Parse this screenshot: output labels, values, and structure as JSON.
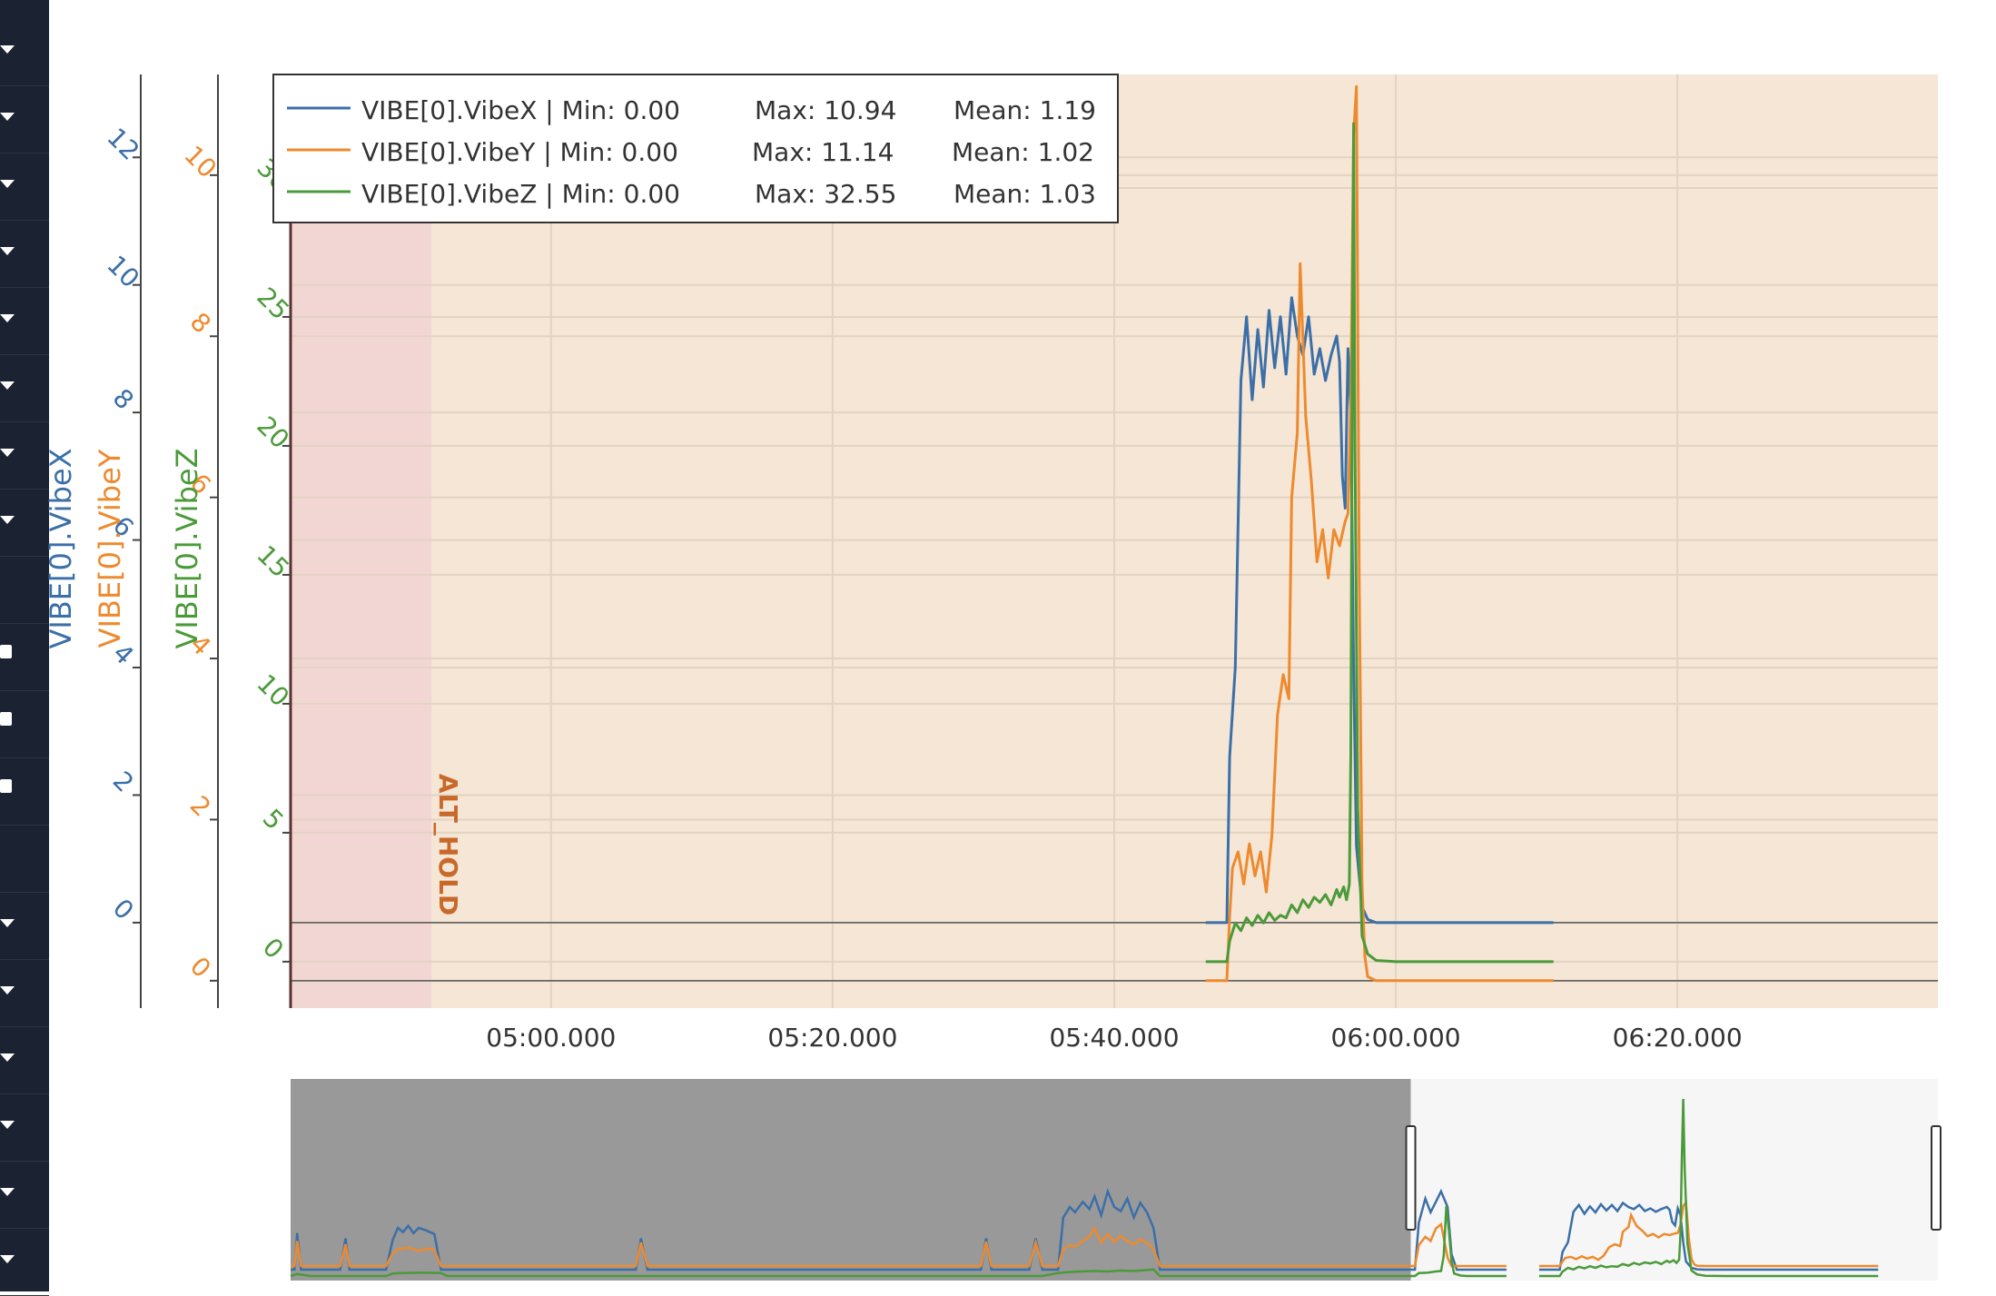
{
  "sidebar": {
    "icons": [
      "chevron-down-icon",
      "chevron-down-icon",
      "chevron-down-icon",
      "chevron-down-icon",
      "chevron-down-icon",
      "chevron-down-icon",
      "chevron-down-icon",
      "chevron-down-icon",
      "",
      "folder-icon",
      "folder-icon",
      "folder-icon",
      "",
      "chevron-down-icon",
      "chevron-down-icon",
      "chevron-down-icon",
      "chevron-down-icon",
      "chevron-down-icon",
      "chevron-down-icon"
    ]
  },
  "colors": {
    "vibex": "#3b6fa8",
    "vibey": "#ee8a2e",
    "vibez": "#4b9a3a",
    "plot_bg": "#f5e6d6",
    "mode_bg": "#f1d6d4",
    "mode_label": "#c8692a",
    "range_selected": "#999999",
    "range_bg": "#f6f6f6"
  },
  "chart_data": {
    "type": "line",
    "title": "",
    "xlabel": "",
    "x_tick_labels": [
      "05:00.000",
      "05:20.000",
      "05:40.000",
      "06:00.000",
      "06:20.000"
    ],
    "x_tick_seconds": [
      300,
      320,
      340,
      360,
      380
    ],
    "x_range_seconds": [
      281.5,
      398.5
    ],
    "legend_position": "top-left",
    "legend": [
      {
        "name": "VIBE[0].VibeX",
        "min": "Min: 0.00",
        "max": "Max: 10.94",
        "mean": "Mean: 1.19"
      },
      {
        "name": "VIBE[0].VibeY",
        "min": "Min: 0.00",
        "max": "Max: 11.14",
        "mean": "Mean: 1.02"
      },
      {
        "name": "VIBE[0].VibeZ",
        "min": "Min: 0.00",
        "max": "Max: 32.55",
        "mean": "Mean: 1.03"
      }
    ],
    "y_axes": [
      {
        "label": "VIBE[0].VibeX",
        "ticks": [
          "0",
          "2",
          "4",
          "6",
          "8",
          "10",
          "12"
        ],
        "range": [
          -1.34,
          13.3
        ]
      },
      {
        "label": "VIBE[0].VibeY",
        "ticks": [
          "0",
          "2",
          "4",
          "6",
          "8",
          "10"
        ],
        "range": [
          -0.34,
          11.25
        ]
      },
      {
        "label": "VIBE[0].VibeZ",
        "ticks": [
          "0",
          "5",
          "10",
          "15",
          "20",
          "25",
          "30"
        ],
        "range": [
          -1.8,
          34.4
        ]
      }
    ],
    "mode_regions": [
      {
        "label": "",
        "start": 281.5,
        "end": 291.5
      },
      {
        "label": "ALT_HOLD",
        "start": 291.5,
        "end": 398.5
      }
    ],
    "series": [
      {
        "name": "VIBE[0].VibeX",
        "x": [
          346.5,
          348.0,
          348.2,
          348.6,
          349.0,
          349.4,
          349.8,
          350.2,
          350.6,
          351.0,
          351.4,
          351.8,
          352.2,
          352.6,
          353.0,
          353.4,
          353.8,
          354.2,
          354.6,
          355.0,
          355.4,
          355.8,
          356.0,
          356.2,
          356.4,
          356.6,
          356.8,
          357.0,
          357.2,
          357.6,
          358.0,
          358.6,
          360.0,
          362.0,
          365.0,
          368.0,
          371.2
        ],
        "y": [
          0,
          0,
          2.6,
          4,
          8.5,
          9.5,
          8.2,
          9.3,
          8.4,
          9.6,
          8.7,
          9.5,
          8.6,
          9.8,
          9.2,
          8.9,
          9.5,
          8.6,
          9.0,
          8.5,
          8.9,
          9.2,
          8.8,
          7.0,
          6.5,
          9.0,
          8.0,
          4.0,
          1.2,
          0.25,
          0.05,
          0,
          0,
          0,
          0,
          0,
          0
        ]
      },
      {
        "name": "VIBE[0].VibeY",
        "x": [
          346.5,
          348.0,
          348.2,
          348.4,
          348.8,
          349.2,
          349.6,
          350.0,
          350.4,
          350.8,
          351.2,
          351.6,
          352.0,
          352.4,
          352.6,
          353.0,
          353.2,
          353.6,
          354.0,
          354.4,
          354.8,
          355.2,
          355.6,
          356.0,
          356.4,
          356.6,
          356.8,
          357.0,
          357.2,
          357.4,
          357.6,
          357.8,
          358.0,
          358.6,
          360.0,
          365.0,
          371.2
        ],
        "y": [
          0,
          0,
          0.8,
          1.4,
          1.6,
          1.2,
          1.7,
          1.3,
          1.6,
          1.1,
          1.8,
          3.3,
          3.8,
          3.5,
          6.0,
          6.8,
          8.9,
          7.0,
          6.2,
          5.2,
          5.6,
          5.0,
          5.6,
          5.4,
          5.7,
          5.8,
          7.2,
          10.5,
          11.1,
          5.0,
          1.2,
          0.3,
          0.05,
          0,
          0,
          0,
          0
        ]
      },
      {
        "name": "VIBE[0].VibeZ",
        "x": [
          346.5,
          348.0,
          348.2,
          348.6,
          349.0,
          349.4,
          349.8,
          350.2,
          350.6,
          351.0,
          351.4,
          351.8,
          352.2,
          352.6,
          353.0,
          353.4,
          353.8,
          354.2,
          354.6,
          355.0,
          355.4,
          355.8,
          356.0,
          356.3,
          356.5,
          356.7,
          356.8,
          356.9,
          357.0,
          357.1,
          357.3,
          357.6,
          358.0,
          358.6,
          360.0,
          365.0,
          371.2
        ],
        "y": [
          0,
          0,
          0.8,
          1.5,
          1.2,
          1.7,
          1.4,
          1.8,
          1.5,
          1.9,
          1.6,
          1.8,
          1.7,
          2.2,
          1.9,
          2.4,
          2.1,
          2.5,
          2.3,
          2.6,
          2.2,
          2.8,
          2.5,
          2.9,
          2.4,
          3.0,
          8.0,
          22.0,
          32.5,
          20.0,
          6.0,
          1.0,
          0.3,
          0.05,
          0,
          0,
          0
        ]
      }
    ],
    "range_slider": {
      "selected_fraction": [
        0.0,
        0.68
      ],
      "series": [
        {
          "name": "VIBE[0].VibeX",
          "x": [
            0,
            0.3,
            0.5,
            0.8,
            1.5,
            2.0,
            3.8,
            4.2,
            4.5,
            5.3,
            7.3,
            7.8,
            8.2,
            8.6,
            9.0,
            9.4,
            9.8,
            10.3,
            11.0,
            11.5,
            12.0,
            13.5,
            14.0,
            14.4,
            14.8,
            21.4,
            26.4,
            26.8,
            27.3,
            31.0,
            52.8,
            53.2,
            53.6,
            54.1,
            55.8,
            56.5,
            57.0,
            57.5,
            58.7,
            59.1,
            59.6,
            60.0,
            60.6,
            61.1,
            61.5,
            62.0,
            62.5,
            63.0,
            63.5,
            64.0,
            64.5,
            65.0,
            65.5,
            66.0,
            66.5,
            67.0,
            70.0,
            72.0,
            85.0,
            86.0,
            86.3,
            86.8,
            87.2,
            87.6,
            88.0,
            88.5,
            88.8,
            89.2,
            89.6,
            90.0,
            93.0
          ],
          "y": [
            0,
            0,
            3.5,
            0,
            0,
            0,
            0,
            3.0,
            0,
            0,
            0,
            2.8,
            4.0,
            3.6,
            4.2,
            3.5,
            4.0,
            3.8,
            3.4,
            0,
            0,
            0,
            0,
            0,
            0,
            0,
            0,
            3.0,
            0,
            0,
            0,
            3.0,
            0,
            0,
            0,
            0,
            3.0,
            0,
            0,
            5.0,
            6.0,
            5.5,
            6.5,
            5.8,
            7.0,
            5.2,
            7.5,
            6.0,
            5.6,
            6.8,
            5.0,
            6.4,
            5.5,
            4.0,
            0,
            0,
            0,
            0,
            0,
            0,
            4.5,
            6.8,
            5.5,
            6.5,
            7.5,
            6.0,
            1.5,
            0,
            0,
            0,
            0
          ]
        },
        {
          "name": "VIBE[0].VibeY",
          "x": [
            0,
            0.3,
            0.5,
            0.8,
            1.5,
            2.0,
            3.8,
            4.2,
            4.5,
            5.3,
            7.3,
            7.8,
            8.2,
            9.0,
            9.8,
            10.5,
            11.0,
            11.5,
            12.0,
            14.8,
            26.4,
            26.8,
            27.3,
            31.0,
            52.8,
            53.2,
            53.6,
            54.1,
            55.8,
            56.5,
            57.0,
            57.5,
            58.7,
            59.1,
            59.6,
            60.0,
            60.6,
            61.1,
            61.5,
            62.0,
            62.5,
            63.0,
            63.5,
            64.0,
            64.5,
            65.0,
            65.5,
            66.0,
            66.5,
            67.0,
            70.0,
            85.0,
            86.0,
            86.3,
            86.8,
            87.2,
            87.6,
            88.0,
            88.5,
            88.8,
            89.2,
            89.6,
            90.0,
            93.0
          ],
          "y": [
            0,
            0,
            3.0,
            0,
            0,
            0,
            0,
            2.6,
            0,
            0,
            0,
            1.5,
            2.0,
            2.2,
            1.8,
            2.1,
            1.9,
            0,
            0,
            0,
            0,
            2.8,
            0,
            0,
            0,
            2.9,
            0,
            0,
            0,
            0,
            2.8,
            0,
            0,
            2.0,
            2.5,
            2.3,
            3.0,
            3.5,
            4.5,
            2.8,
            3.8,
            2.9,
            3.6,
            3.0,
            2.6,
            3.2,
            2.8,
            2.0,
            0,
            0,
            0,
            0,
            0,
            2.5,
            3.5,
            3.0,
            4.5,
            5.0,
            1.0,
            0,
            0,
            0,
            0,
            0
          ]
        },
        {
          "name": "VIBE[0].VibeZ",
          "x": [
            0,
            0.5,
            1.5,
            7.3,
            7.8,
            8.5,
            10.0,
            11.5,
            12.0,
            14.8,
            26.4,
            31.0,
            52.8,
            57.5,
            58.7,
            59.5,
            60.5,
            61.5,
            62.5,
            63.5,
            64.5,
            65.5,
            66.0,
            66.5,
            67.0,
            70.0,
            85.0,
            86.0,
            86.3,
            87.0,
            87.6,
            88.0,
            88.2,
            88.4,
            88.6,
            88.8,
            89.0,
            89.5,
            90.0,
            93.0
          ],
          "y": [
            0,
            0.4,
            0,
            0,
            0.5,
            0.6,
            0.7,
            0.6,
            0,
            0,
            0,
            0,
            0,
            0,
            0.6,
            0.8,
            0.9,
            1.0,
            0.9,
            1.1,
            1.0,
            1.2,
            1.3,
            0,
            0,
            0,
            0,
            0,
            0.6,
            0.7,
            0.9,
            1.0,
            4.0,
            14.0,
            9.0,
            3.0,
            0.5,
            0.1,
            0,
            0
          ]
        }
      ]
    }
  }
}
